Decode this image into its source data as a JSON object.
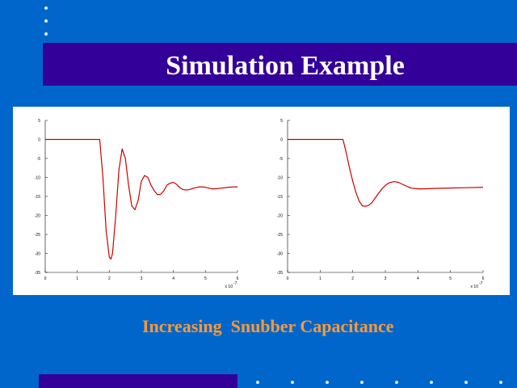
{
  "slide": {
    "title": "Simulation Example",
    "caption": "Increasing  Snubber Capacitance",
    "colors": {
      "background": "#0066cc",
      "title_band": "#330099",
      "title_text": "#ffffff",
      "caption_text": "#ff9933",
      "plot_line": "#cc0000"
    }
  },
  "chart_data": [
    {
      "type": "line",
      "title": "",
      "xlabel": "",
      "ylabel": "",
      "x_multiplier_label": "x 10",
      "x_multiplier_exponent": "-7",
      "xlim": [
        0,
        6
      ],
      "ylim": [
        -35,
        5
      ],
      "xticks": [
        "0",
        "1",
        "2",
        "3",
        "4",
        "5",
        "6"
      ],
      "yticks": [
        "5",
        "0",
        "-5",
        "-10",
        "-15",
        "-20",
        "-25",
        "-30",
        "-35"
      ],
      "grid": false,
      "series": [
        {
          "x": [
            0,
            1.7,
            1.8,
            1.9,
            2.0,
            2.05,
            2.1,
            2.2,
            2.3,
            2.4,
            2.5,
            2.6,
            2.7,
            2.8,
            2.9,
            3.0,
            3.1,
            3.2,
            3.3,
            3.4,
            3.5,
            3.6,
            3.7,
            3.8,
            3.9,
            4.0,
            4.1,
            4.2,
            4.3,
            4.4,
            4.5,
            4.6,
            4.7,
            4.8,
            4.9,
            5.0,
            5.1,
            5.2,
            5.3,
            5.5,
            5.7,
            5.85,
            6.0
          ],
          "y": [
            0,
            0,
            -10,
            -24,
            -31,
            -31.5,
            -30,
            -20,
            -8,
            -2.5,
            -5,
            -12,
            -17.5,
            -18.5,
            -16,
            -11,
            -9.5,
            -10,
            -12,
            -13.5,
            -14.5,
            -14.5,
            -13.5,
            -12,
            -11.5,
            -11.3,
            -11.8,
            -12.7,
            -13.2,
            -13.3,
            -13.2,
            -12.9,
            -12.7,
            -12.5,
            -12.5,
            -12.6,
            -12.8,
            -13,
            -13,
            -12.8,
            -12.6,
            -12.5,
            -12.5
          ]
        }
      ]
    },
    {
      "type": "line",
      "title": "",
      "xlabel": "",
      "ylabel": "",
      "x_multiplier_label": "x 10",
      "x_multiplier_exponent": "-7",
      "xlim": [
        0,
        6
      ],
      "ylim": [
        -35,
        5
      ],
      "xticks": [
        "0",
        "1",
        "2",
        "3",
        "4",
        "5",
        "6"
      ],
      "yticks": [
        "5",
        "0",
        "-5",
        "-10",
        "-15",
        "-20",
        "-25",
        "-30",
        "-35"
      ],
      "grid": false,
      "series": [
        {
          "x": [
            0,
            1.7,
            1.8,
            1.9,
            2.0,
            2.1,
            2.2,
            2.3,
            2.4,
            2.5,
            2.6,
            2.7,
            2.8,
            2.9,
            3.0,
            3.1,
            3.2,
            3.3,
            3.4,
            3.5,
            3.6,
            3.7,
            3.8,
            3.9,
            4.0,
            4.2,
            4.5,
            5.0,
            5.5,
            6.0
          ],
          "y": [
            0,
            0,
            -3.5,
            -7.5,
            -11,
            -14,
            -16.3,
            -17.5,
            -17.6,
            -17.3,
            -16.5,
            -15.3,
            -14.1,
            -13,
            -12.1,
            -11.5,
            -11.2,
            -11.1,
            -11.3,
            -11.7,
            -12.1,
            -12.5,
            -12.8,
            -12.9,
            -13,
            -13,
            -12.9,
            -12.8,
            -12.7,
            -12.6
          ]
        }
      ]
    }
  ]
}
